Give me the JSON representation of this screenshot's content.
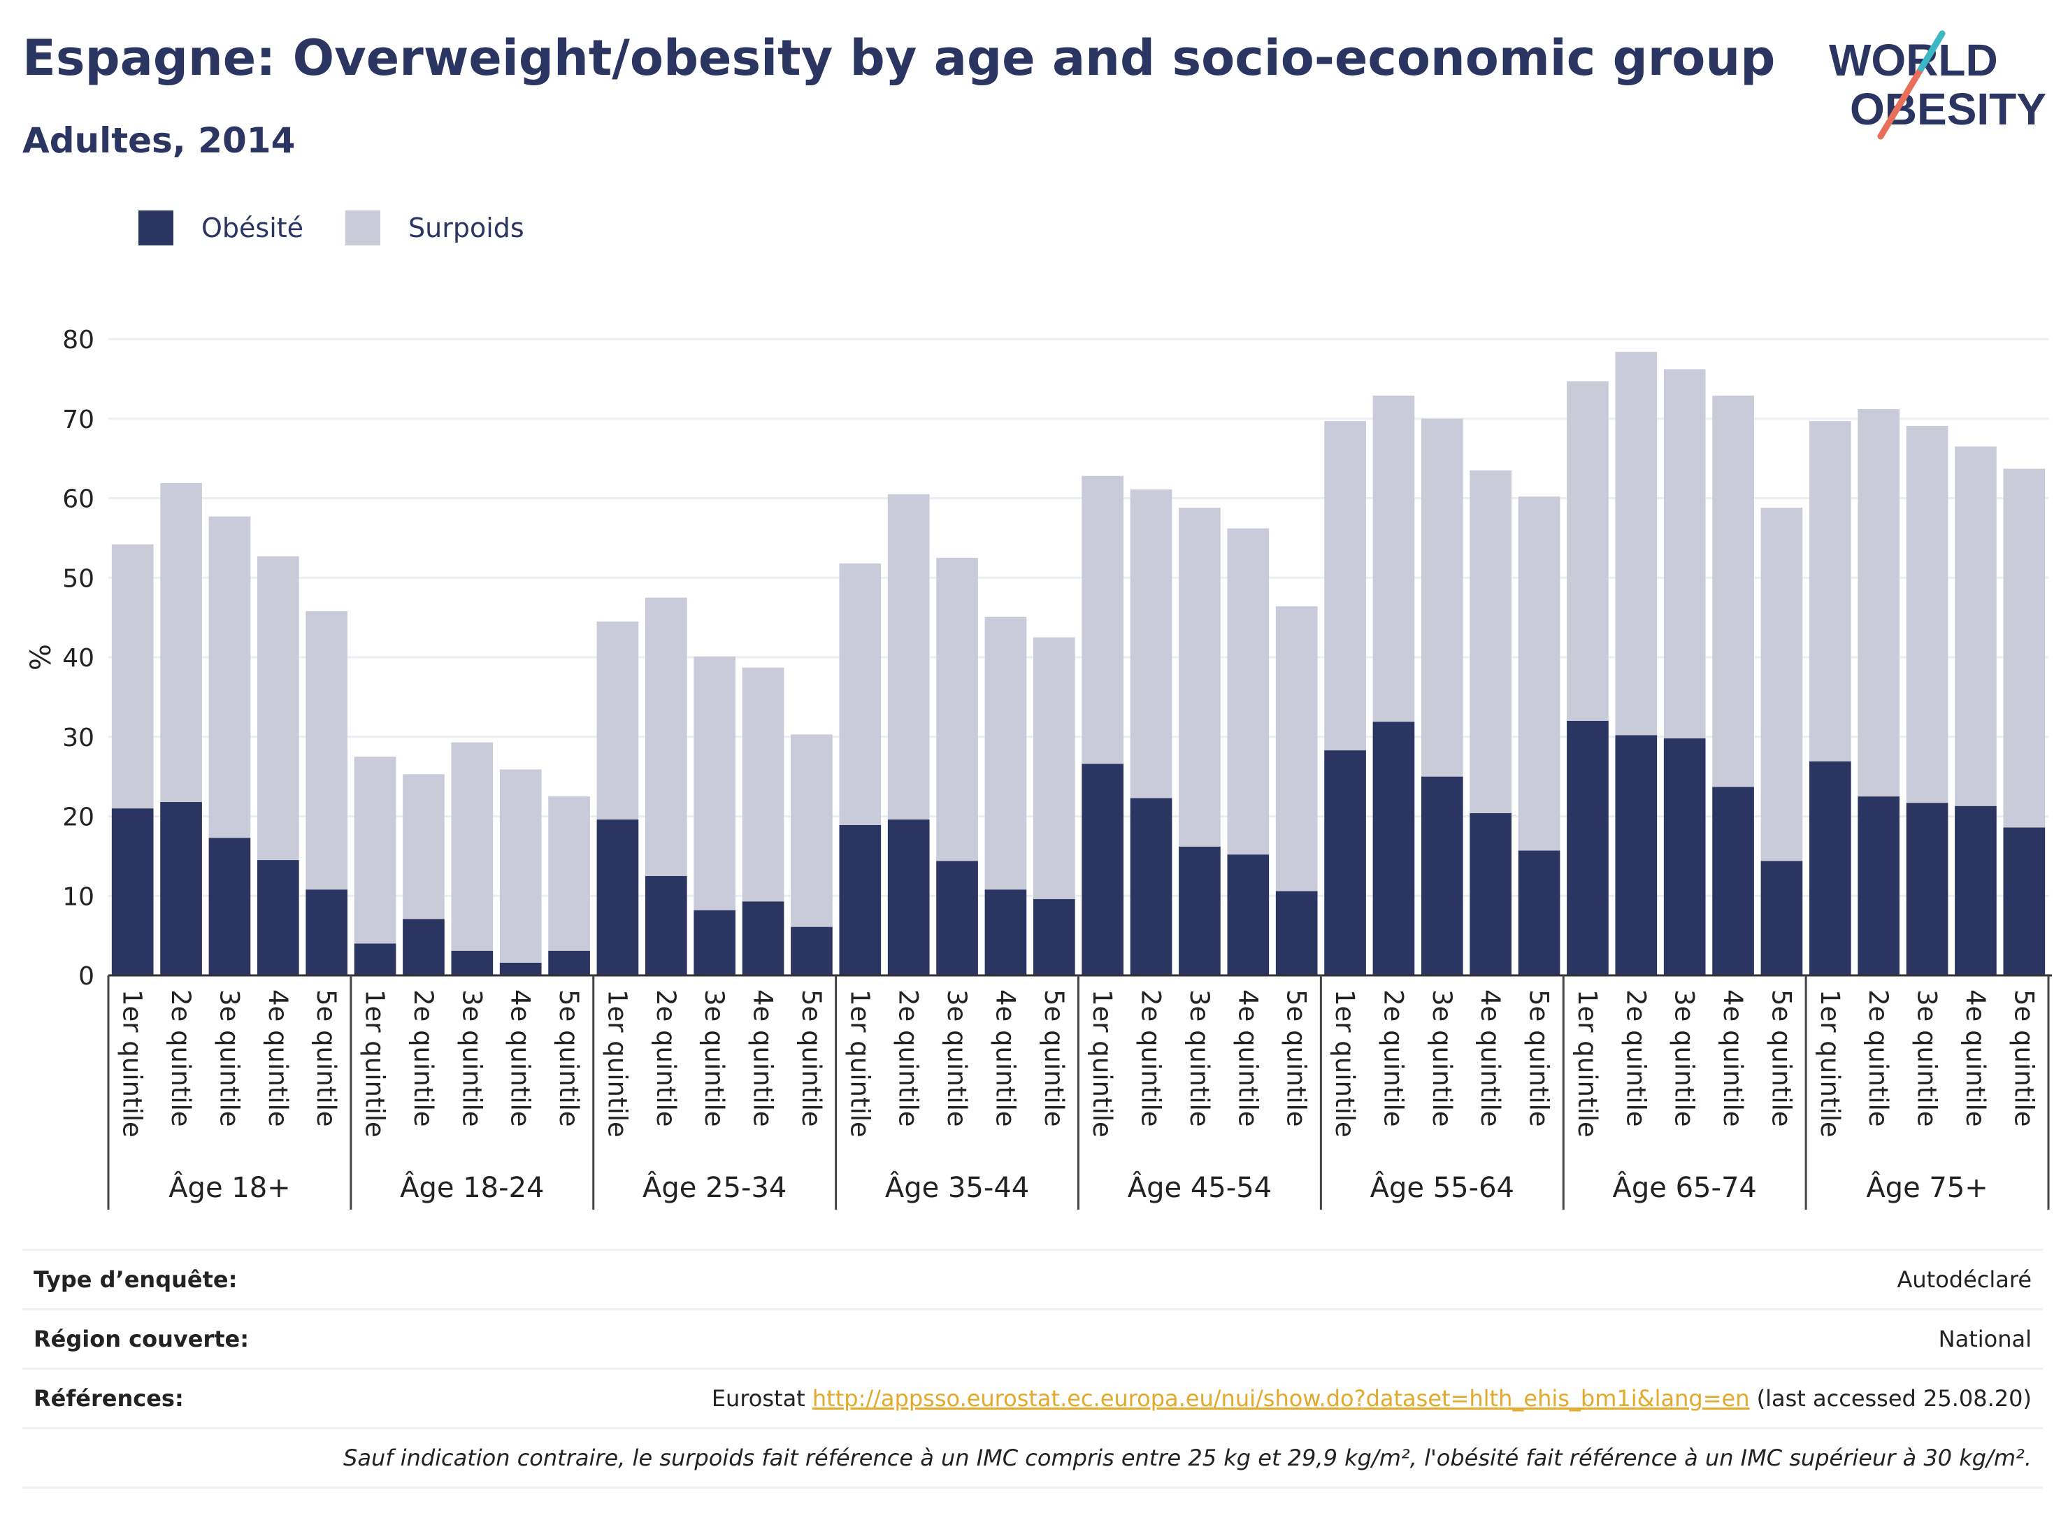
{
  "header": {
    "title": "Espagne: Overweight/obesity by age and socio-economic group",
    "subtitle": "Adultes, 2014"
  },
  "logo": {
    "line1": "WORLD",
    "line2": "OBESITY"
  },
  "legend": [
    {
      "label": "Obésité",
      "color": "#2b3561"
    },
    {
      "label": "Surpoids",
      "color": "#c9cbd8"
    }
  ],
  "chart_data": {
    "type": "bar",
    "stacked": true,
    "ylabel": "%",
    "ylim": [
      0,
      80
    ],
    "yticks": [
      0,
      10,
      20,
      30,
      40,
      50,
      60,
      70,
      80
    ],
    "grid": true,
    "legend_position": "top-left",
    "groups": [
      "Âge 18+",
      "Âge 18-24",
      "Âge 25-34",
      "Âge 35-44",
      "Âge 45-54",
      "Âge 55-64",
      "Âge 65-74",
      "Âge 75+"
    ],
    "subcategories": [
      "1er quintile",
      "2e quintile",
      "3e quintile",
      "4e quintile",
      "5e quintile"
    ],
    "series": [
      {
        "name": "Obésité",
        "color": "#2b3561",
        "values": [
          [
            21.0,
            21.8,
            17.3,
            14.5,
            10.8
          ],
          [
            4.0,
            7.1,
            3.1,
            1.6,
            3.1
          ],
          [
            19.6,
            12.5,
            8.2,
            9.3,
            6.1
          ],
          [
            18.9,
            19.6,
            14.4,
            10.8,
            9.6
          ],
          [
            26.6,
            22.3,
            16.2,
            15.2,
            10.6
          ],
          [
            28.3,
            31.9,
            25.0,
            20.4,
            15.7
          ],
          [
            32.0,
            30.2,
            29.8,
            23.7,
            14.4
          ],
          [
            26.9,
            22.5,
            21.7,
            21.3,
            18.6
          ]
        ]
      },
      {
        "name": "Surpoids",
        "color": "#c9cbd8",
        "values": [
          [
            33.2,
            40.1,
            40.4,
            38.2,
            35.0
          ],
          [
            23.5,
            18.2,
            26.2,
            24.3,
            19.4
          ],
          [
            24.9,
            35.0,
            31.9,
            29.4,
            24.2
          ],
          [
            32.9,
            40.9,
            38.1,
            34.3,
            32.9
          ],
          [
            36.2,
            38.8,
            42.6,
            41.0,
            35.8
          ],
          [
            41.4,
            41.0,
            45.0,
            43.1,
            44.5
          ],
          [
            42.7,
            48.2,
            46.4,
            49.2,
            44.4
          ],
          [
            42.8,
            48.7,
            47.4,
            45.2,
            45.1
          ]
        ]
      }
    ]
  },
  "info": {
    "survey_type_label": "Type d’enquête:",
    "survey_type_value": "Autodéclaré",
    "region_label": "Région couverte:",
    "region_value": "National",
    "references_label": "Références:",
    "references_prefix": "Eurostat ",
    "references_link": "http://appsso.eurostat.ec.europa.eu/nui/show.do?dataset=hlth_ehis_bm1i&lang=en",
    "references_suffix": " (last accessed 25.08.20)",
    "note": "Sauf indication contraire, le surpoids fait référence à un IMC compris entre 25 kg et 29,9 kg/m², l'obésité fait référence à un IMC supérieur à 30 kg/m²."
  }
}
